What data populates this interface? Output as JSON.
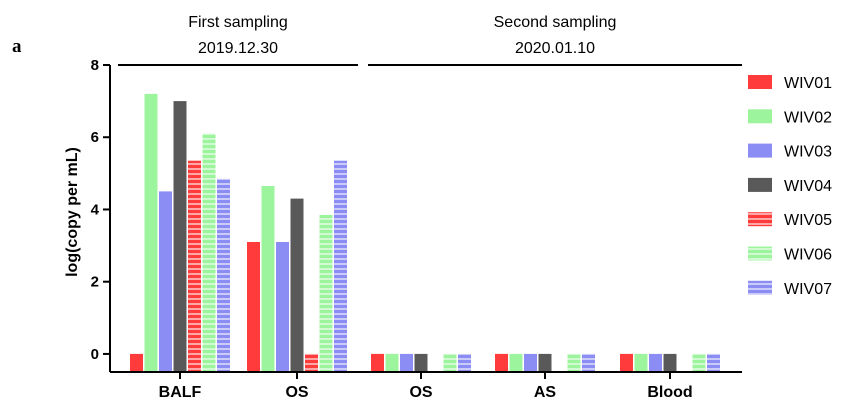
{
  "panel_label": "a",
  "groups": [
    {
      "title": "First sampling",
      "date": "2019.12.30"
    },
    {
      "title": "Second sampling",
      "date": "2020.01.10"
    }
  ],
  "chart_data": {
    "type": "bar",
    "ylabel": "log(copy per mL)",
    "xlabel": "",
    "ylim": [
      -0.5,
      8
    ],
    "yticks": [
      0,
      2,
      4,
      6,
      8
    ],
    "categories": [
      "BALF",
      "OS",
      "OS",
      "AS",
      "Blood"
    ],
    "category_groups": [
      0,
      0,
      1,
      1,
      1
    ],
    "series": [
      {
        "name": "WIV01",
        "color": "#ff3b3b",
        "hatched": false,
        "values": [
          0,
          3.1,
          0,
          0,
          0
        ]
      },
      {
        "name": "WIV02",
        "color": "#9cf59c",
        "hatched": false,
        "values": [
          7.2,
          4.65,
          0,
          0,
          0
        ]
      },
      {
        "name": "WIV03",
        "color": "#8c8cf5",
        "hatched": false,
        "values": [
          4.5,
          3.1,
          0,
          0,
          0
        ]
      },
      {
        "name": "WIV04",
        "color": "#595959",
        "hatched": false,
        "values": [
          7.0,
          4.3,
          0,
          0,
          0
        ]
      },
      {
        "name": "WIV05",
        "color": "#ff3b3b",
        "hatched": true,
        "values": [
          5.35,
          0,
          null,
          null,
          null
        ]
      },
      {
        "name": "WIV06",
        "color": "#9cf59c",
        "hatched": true,
        "values": [
          6.1,
          3.85,
          0,
          0,
          0
        ]
      },
      {
        "name": "WIV07",
        "color": "#8c8cf5",
        "hatched": true,
        "values": [
          4.85,
          5.35,
          0,
          0,
          0
        ]
      }
    ],
    "legend_position": "right",
    "grid": false
  }
}
